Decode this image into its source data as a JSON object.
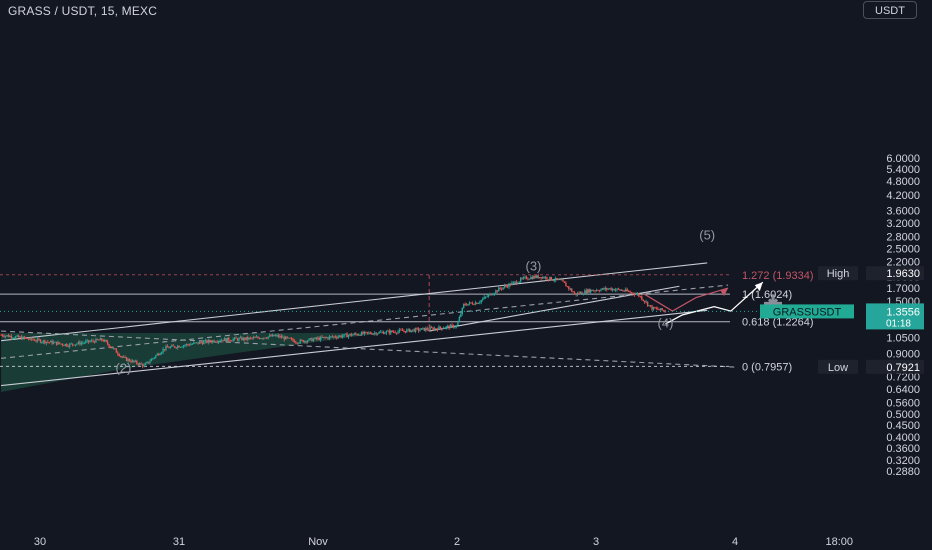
{
  "header": {
    "title": "GRASS / USDT, 15, MEXC",
    "currency_button": "USDT"
  },
  "colors": {
    "background": "#131722",
    "axis_text": "#d1d4dc",
    "up": "#26a69a",
    "down": "#ef5350",
    "channel_fill": "#1d4a3e",
    "fib_line": "#ffffff",
    "fib_ext": "#b0485a",
    "badge": "#26c6da"
  },
  "chart_data": {
    "type": "candlestick",
    "symbol": "GRASSUSDT",
    "scale": "log",
    "ylim": [
      0.28,
      6.2
    ],
    "y_ticks": [
      "6.0000",
      "5.4000",
      "4.8000",
      "4.2000",
      "3.6000",
      "3.2000",
      "2.8000",
      "2.5000",
      "2.2000",
      "1.9000",
      "1.7000",
      "1.5000",
      "1.3500",
      "1.2000",
      "1.0500",
      "0.9000",
      "0.8100",
      "0.7200",
      "0.6400",
      "0.5600",
      "0.5000",
      "0.4500",
      "0.4000",
      "0.3600",
      "0.3200",
      "0.2880"
    ],
    "y_tick_values": [
      6.0,
      5.4,
      4.8,
      4.2,
      3.6,
      3.2,
      2.8,
      2.5,
      2.2,
      1.9,
      1.7,
      1.5,
      1.35,
      1.2,
      1.05,
      0.9,
      0.81,
      0.72,
      0.64,
      0.56,
      0.5,
      0.45,
      0.4,
      0.36,
      0.32,
      0.288
    ],
    "x_ticks": [
      "30",
      "31",
      "Nov",
      "2",
      "3",
      "4",
      "18:00"
    ],
    "x_tick_days": [
      0,
      1,
      2,
      3,
      4,
      5,
      5.75
    ],
    "price_path_days": [
      -0.28,
      0.0,
      0.2,
      0.45,
      0.6,
      0.75,
      0.9,
      1.1,
      1.3,
      1.5,
      1.7,
      1.85,
      2.05,
      2.3,
      2.6,
      2.85,
      3.0,
      3.05,
      3.15,
      3.3,
      3.5,
      3.6,
      3.75,
      3.85,
      3.95,
      4.1,
      4.2,
      4.3,
      4.4,
      4.5
    ],
    "price_path_values": [
      1.08,
      1.02,
      0.98,
      1.03,
      0.86,
      0.8,
      0.95,
      0.99,
      1.03,
      1.04,
      1.07,
      1.01,
      1.05,
      1.09,
      1.12,
      1.15,
      1.18,
      1.45,
      1.48,
      1.68,
      1.88,
      1.9,
      1.82,
      1.6,
      1.66,
      1.69,
      1.66,
      1.6,
      1.4,
      1.36
    ],
    "fib_levels": [
      {
        "label": "1.272 (1.9334)",
        "value": 1.9334,
        "style": "dashed",
        "color": "#b0485a"
      },
      {
        "label": "1 (1.6024)",
        "value": 1.6024,
        "style": "solid",
        "color": "#d1d4dc"
      },
      {
        "label": "0.618 (1.2264)",
        "value": 1.2264,
        "style": "solid",
        "color": "#d1d4dc"
      },
      {
        "label": "0 (0.7957)",
        "value": 0.7957,
        "style": "dashed",
        "color": "#d1d4dc"
      }
    ],
    "wave_labels": [
      {
        "label": "(2)",
        "day": 0.6,
        "value": 0.75
      },
      {
        "label": "(3)",
        "day": 3.55,
        "value": 2.02
      },
      {
        "label": "(4)",
        "day": 4.5,
        "value": 1.16
      },
      {
        "label": "(5)",
        "day": 4.8,
        "value": 2.72
      }
    ],
    "projection_white_days": [
      4.5,
      4.62,
      4.85,
      4.97,
      5.2
    ],
    "projection_white_values": [
      1.2,
      1.31,
      1.42,
      1.36,
      1.8
    ],
    "projection_red_days": [
      4.35,
      4.55,
      4.72,
      4.95
    ],
    "projection_red_values": [
      1.6,
      1.36,
      1.55,
      1.7
    ],
    "high_badge": {
      "label": "High",
      "value": "1.9630"
    },
    "low_badge": {
      "label": "Low",
      "value": "0.7921"
    },
    "last_price_badge": {
      "label": "GRASSUSDT",
      "value": "1.3556",
      "countdown": "01:18"
    }
  }
}
